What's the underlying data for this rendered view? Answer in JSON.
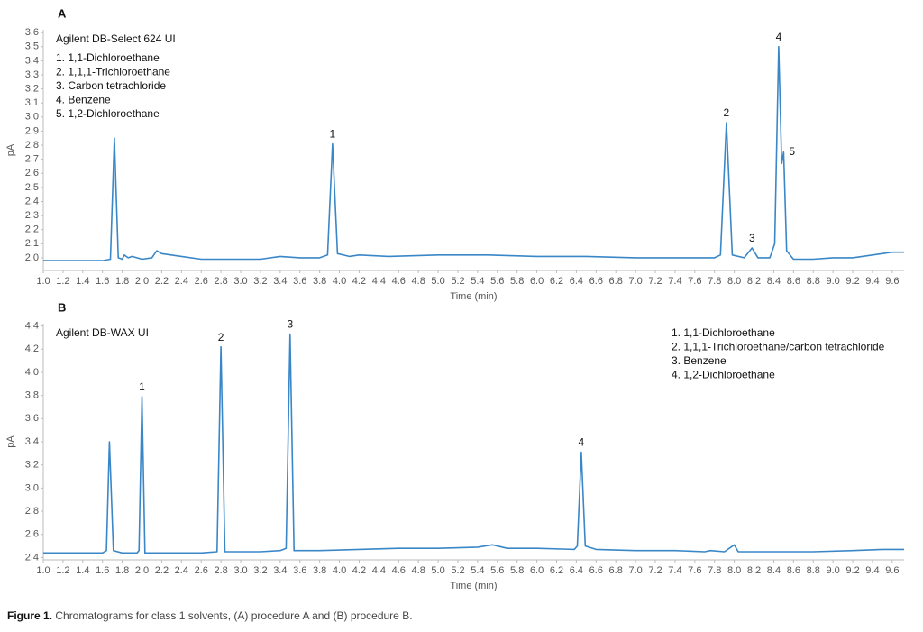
{
  "chart_data": [
    {
      "type": "line",
      "panel": "A",
      "column": "Agilent DB-Select 624 UI",
      "x_label": "Time (min)",
      "y_label": "pA",
      "color": "#3a87c8",
      "grid": false,
      "legend_position": "top-left",
      "legend": [
        "1. 1,1-Dichloroethane",
        "2. 1,1,1-Trichloroethane",
        "3. Carbon tetrachloride",
        "4. Benzene",
        "5. 1,2-Dichloroethane"
      ],
      "xlim": [
        1.0,
        9.72
      ],
      "ylim": [
        1.91,
        3.62
      ],
      "xticks": [
        {
          "value": 1,
          "label": "1.0"
        },
        1.2,
        1.4,
        1.6,
        1.8,
        {
          "value": 2,
          "label": "2.0"
        },
        2.2,
        2.4,
        2.6,
        2.8,
        {
          "value": 3,
          "label": "3.0"
        },
        3.2,
        3.4,
        3.6,
        3.8,
        {
          "value": 4,
          "label": "4.0"
        },
        4.2,
        4.4,
        4.6,
        4.8,
        {
          "value": 5,
          "label": "5.0"
        },
        5.2,
        5.4,
        5.6,
        5.8,
        {
          "value": 6,
          "label": "6.0"
        },
        6.2,
        6.4,
        6.6,
        6.8,
        {
          "value": 7,
          "label": "7.0"
        },
        7.2,
        7.4,
        7.6,
        7.8,
        {
          "value": 8,
          "label": "8.0"
        },
        8.2,
        8.4,
        8.6,
        8.8,
        {
          "value": 9,
          "label": "9.0"
        },
        9.2,
        9.4,
        9.6
      ],
      "yticks": [
        {
          "value": 2,
          "label": "2.0"
        },
        2.1,
        2.2,
        2.3,
        2.4,
        2.5,
        2.6,
        2.7,
        2.8,
        2.9,
        {
          "value": 3,
          "label": "3.0"
        },
        3.1,
        3.2,
        3.3,
        3.4,
        3.5,
        3.6
      ],
      "x": [
        1.0,
        1.2,
        1.4,
        1.6,
        1.68,
        1.72,
        1.76,
        1.8,
        1.82,
        1.86,
        1.9,
        2.0,
        2.1,
        2.15,
        2.2,
        2.4,
        2.6,
        2.8,
        3.0,
        3.2,
        3.4,
        3.6,
        3.8,
        3.88,
        3.93,
        3.98,
        4.1,
        4.2,
        4.5,
        5.0,
        5.5,
        6.0,
        6.5,
        7.0,
        7.5,
        7.8,
        7.86,
        7.92,
        7.98,
        8.1,
        8.18,
        8.24,
        8.36,
        8.41,
        8.45,
        8.48,
        8.5,
        8.53,
        8.6,
        8.8,
        9.0,
        9.2,
        9.4,
        9.6,
        9.72
      ],
      "values": [
        1.98,
        1.98,
        1.98,
        1.98,
        1.99,
        2.85,
        2.0,
        1.99,
        2.02,
        2.0,
        2.01,
        1.99,
        2.0,
        2.05,
        2.03,
        2.01,
        1.99,
        1.99,
        1.99,
        1.99,
        2.01,
        2.0,
        2.0,
        2.02,
        2.81,
        2.03,
        2.01,
        2.02,
        2.01,
        2.02,
        2.02,
        2.01,
        2.01,
        2.0,
        2.0,
        2.0,
        2.02,
        2.96,
        2.02,
        2.0,
        2.07,
        2.0,
        2.0,
        2.1,
        3.5,
        2.67,
        2.75,
        2.05,
        1.99,
        1.99,
        2.0,
        2.0,
        2.02,
        2.04,
        2.04
      ],
      "annotations": [
        {
          "text": "1",
          "x": 3.93,
          "y": 2.81
        },
        {
          "text": "2",
          "x": 7.92,
          "y": 2.96
        },
        {
          "text": "3",
          "x": 8.18,
          "y": 2.07
        },
        {
          "text": "4",
          "x": 8.45,
          "y": 3.5
        },
        {
          "text": "5",
          "x": 8.5,
          "y": 2.75,
          "side": "right"
        }
      ]
    },
    {
      "type": "line",
      "panel": "B",
      "column": "Agilent DB-WAX UI",
      "x_label": "Time (min)",
      "y_label": "pA",
      "color": "#3a87c8",
      "grid": false,
      "legend_position": "top-right",
      "legend": [
        "1. 1,1-Dichloroethane",
        "2. 1,1,1-Trichloroethane/carbon tetrachloride",
        "3. Benzene",
        "4. 1,2-Dichloroethane"
      ],
      "xlim": [
        1.0,
        9.72
      ],
      "ylim": [
        2.38,
        4.42
      ],
      "xticks": [
        {
          "value": 1,
          "label": "1.0"
        },
        1.2,
        1.4,
        1.6,
        1.8,
        {
          "value": 2,
          "label": "2.0"
        },
        2.2,
        2.4,
        2.6,
        2.8,
        {
          "value": 3,
          "label": "3.0"
        },
        3.2,
        3.4,
        3.6,
        3.8,
        {
          "value": 4,
          "label": "4.0"
        },
        4.2,
        4.4,
        4.6,
        4.8,
        {
          "value": 5,
          "label": "5.0"
        },
        5.2,
        5.4,
        5.6,
        5.8,
        {
          "value": 6,
          "label": "6.0"
        },
        6.2,
        6.4,
        6.6,
        6.8,
        {
          "value": 7,
          "label": "7.0"
        },
        7.2,
        7.4,
        7.6,
        7.8,
        {
          "value": 8,
          "label": "8.0"
        },
        8.2,
        8.4,
        8.6,
        8.8,
        {
          "value": 9,
          "label": "9.0"
        },
        9.2,
        9.4,
        9.6
      ],
      "yticks": [
        2.4,
        2.6,
        2.8,
        {
          "value": 3,
          "label": "3.0"
        },
        3.2,
        3.4,
        3.6,
        3.8,
        {
          "value": 4,
          "label": "4.0"
        },
        4.2,
        4.4
      ],
      "x": [
        1.0,
        1.4,
        1.6,
        1.64,
        1.67,
        1.71,
        1.8,
        1.95,
        1.97,
        2.0,
        2.03,
        2.2,
        2.4,
        2.6,
        2.76,
        2.8,
        2.84,
        3.0,
        3.2,
        3.4,
        3.46,
        3.5,
        3.54,
        3.8,
        4.2,
        4.6,
        5.0,
        5.4,
        5.55,
        5.7,
        6.0,
        6.38,
        6.41,
        6.45,
        6.49,
        6.6,
        7.0,
        7.4,
        7.7,
        7.76,
        7.9,
        8.0,
        8.04,
        8.4,
        8.8,
        9.2,
        9.5,
        9.72
      ],
      "values": [
        2.44,
        2.44,
        2.44,
        2.46,
        3.4,
        2.46,
        2.44,
        2.44,
        2.46,
        3.79,
        2.44,
        2.44,
        2.44,
        2.44,
        2.45,
        4.22,
        2.45,
        2.45,
        2.45,
        2.46,
        2.48,
        4.33,
        2.46,
        2.46,
        2.47,
        2.48,
        2.48,
        2.49,
        2.51,
        2.48,
        2.48,
        2.47,
        2.5,
        3.31,
        2.5,
        2.47,
        2.46,
        2.46,
        2.45,
        2.46,
        2.45,
        2.51,
        2.45,
        2.45,
        2.45,
        2.46,
        2.47,
        2.47
      ],
      "annotations": [
        {
          "text": "1",
          "x": 2.0,
          "y": 3.79
        },
        {
          "text": "2",
          "x": 2.8,
          "y": 4.22
        },
        {
          "text": "3",
          "x": 3.5,
          "y": 4.33
        },
        {
          "text": "4",
          "x": 6.45,
          "y": 3.31
        }
      ]
    }
  ],
  "caption": {
    "label": "Figure 1.",
    "text": " Chromatograms for class 1 solvents, (A) procedure A and (B) procedure B."
  }
}
